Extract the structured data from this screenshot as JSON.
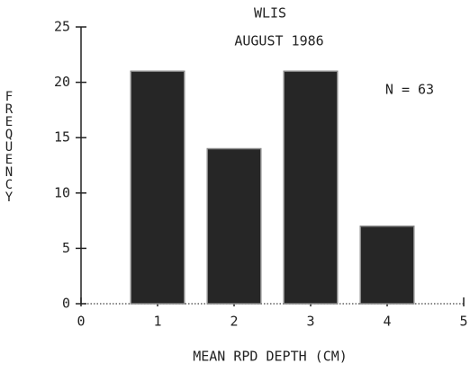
{
  "chart_data": {
    "type": "bar",
    "title": "WLIS",
    "subtitle": "AUGUST 1986",
    "annotation": "N = 63",
    "x_label": "MEAN RPD DEPTH (CM)",
    "y_label": "FREQUENCY",
    "x": [
      1,
      2,
      3,
      4
    ],
    "values": [
      21,
      14,
      21,
      7
    ],
    "color": "#262626",
    "xlim": [
      0,
      5
    ],
    "xticks": [
      0,
      1,
      2,
      3,
      4,
      5
    ],
    "ylim": [
      0,
      25
    ],
    "yticks": [
      0,
      5,
      10,
      15,
      20,
      25
    ],
    "grid": false
  }
}
